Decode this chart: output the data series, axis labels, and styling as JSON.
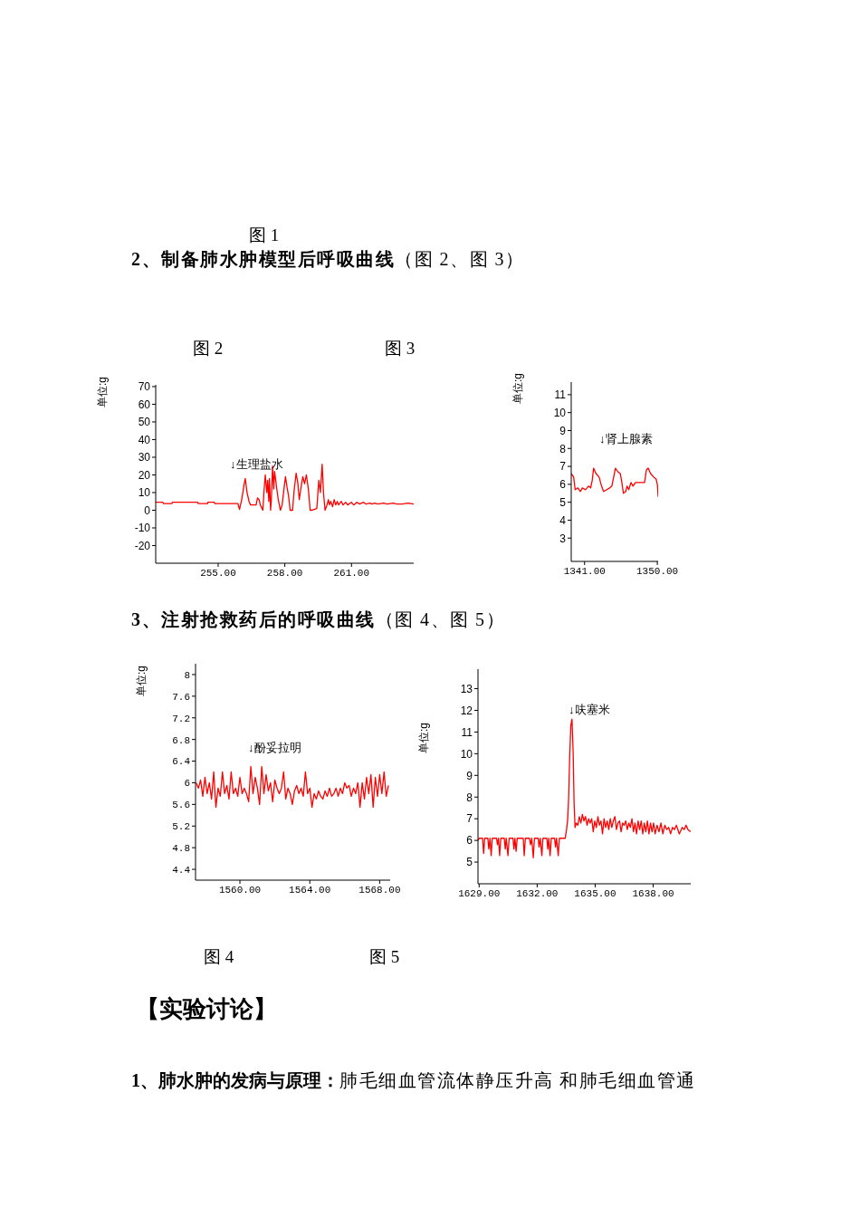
{
  "chart_data": [
    {
      "type": "line",
      "title": "2、制备肺水肿模型后呼吸曲线",
      "subtitle": "（图 2、图 3）",
      "ylabel": "单位:g",
      "annotations": [
        "图 1",
        "图 2",
        "↓生理盐水"
      ],
      "color": "#ff0000",
      "marker": "none",
      "x": [
        252.19,
        252.51,
        252.54,
        252.92,
        252.94,
        254.08,
        254.1,
        254.53,
        254.54,
        254.83,
        254.85,
        255.89,
        255.96,
        256.06,
        256.16,
        256.22,
        256.3,
        256.39,
        256.46,
        256.71,
        256.77,
        256.84,
        256.9,
        257.01,
        257.06,
        257.12,
        257.19,
        257.23,
        257.28,
        257.31,
        257.36,
        257.39,
        257.45,
        257.5,
        257.54,
        257.61,
        257.66,
        257.72,
        257.8,
        257.88,
        257.96,
        258.03,
        258.1,
        258.17,
        258.24,
        258.35,
        258.41,
        258.51,
        258.59,
        258.65,
        258.73,
        258.81,
        258.89,
        258.97,
        259.06,
        259.14,
        259.22,
        259.44,
        259.53,
        259.6,
        259.68,
        259.74,
        259.81,
        259.9,
        259.96,
        260.01,
        260.07,
        260.15,
        260.22,
        260.29,
        260.36,
        260.42,
        260.54,
        260.62,
        260.74,
        260.83,
        260.99,
        261.1,
        261.24,
        261.37,
        261.54,
        261.65,
        261.84,
        261.92,
        262.04,
        262.19,
        262.44,
        262.6,
        262.88,
        263.04,
        263.28,
        263.54,
        263.8
      ],
      "values": [
        4.5,
        4.5,
        3.8,
        3.8,
        4.5,
        4.5,
        3.8,
        3.8,
        4.5,
        4.5,
        3.8,
        3.8,
        0.5,
        6,
        14,
        18,
        10,
        5,
        3,
        3,
        7,
        6,
        3,
        0,
        10,
        20,
        10,
        17,
        5,
        18,
        0,
        5,
        25,
        12,
        22,
        15,
        10,
        5,
        0,
        3,
        12,
        19,
        13,
        8,
        0,
        0,
        10,
        21,
        15,
        6,
        13,
        19,
        15,
        20,
        12,
        0,
        0,
        1,
        17,
        10,
        26,
        10,
        0,
        3,
        6,
        3,
        5,
        2,
        6,
        3,
        5,
        3,
        5,
        3,
        4.5,
        3,
        4.5,
        3,
        4.5,
        3.5,
        4.5,
        3.5,
        4,
        3.5,
        4,
        3.5,
        4,
        3.5,
        4,
        3.5,
        3.5,
        4,
        3.5
      ],
      "xlim": [
        252.19,
        263.8
      ],
      "xticks": [
        {
          "value": 255,
          "label": "255.00"
        },
        {
          "value": 258,
          "label": "258.00"
        },
        {
          "value": 261,
          "label": "261.00"
        }
      ],
      "ylim": [
        -30,
        71
      ],
      "yticks": [
        -20,
        -10,
        0,
        10,
        20,
        30,
        40,
        50,
        60,
        70
      ]
    },
    {
      "type": "line",
      "ylabel": "单位:g",
      "annotations": [
        "图 3",
        "↓肾上腺素"
      ],
      "color": "#ff0000",
      "marker": "none",
      "x": [
        1339.35,
        1339.65,
        1339.84,
        1340.18,
        1340.48,
        1340.74,
        1341.11,
        1341.49,
        1341.75,
        1341.94,
        1342.12,
        1342.42,
        1342.8,
        1343.1,
        1343.36,
        1343.74,
        1344.11,
        1344.37,
        1344.6,
        1344.82,
        1345.12,
        1345.42,
        1345.65,
        1345.8,
        1346.1,
        1346.25,
        1346.47,
        1346.74,
        1347,
        1347.3,
        1347.86,
        1348.42,
        1348.65,
        1348.87,
        1349.17,
        1349.55,
        1349.85,
        1350,
        1350.1
      ],
      "values": [
        6.6,
        6.4,
        5.7,
        5.8,
        5.6,
        5.8,
        5.7,
        5.9,
        5.8,
        6.2,
        6.9,
        6.6,
        6.4,
        5.9,
        5.6,
        5.7,
        5.8,
        5.9,
        6.4,
        6.9,
        6.7,
        6.6,
        6.0,
        5.5,
        5.6,
        5.9,
        5.7,
        6.1,
        5.9,
        6.1,
        6.1,
        6.1,
        6.8,
        6.9,
        6.6,
        6.4,
        6.3,
        6.0,
        5.3
      ],
      "xlim": [
        1339.35,
        1350.1
      ],
      "xticks": [
        {
          "value": 1341,
          "label": "1341.00"
        },
        {
          "value": 1350,
          "label": "1350.00"
        }
      ],
      "ylim": [
        1.7,
        11.7
      ],
      "yticks": [
        3,
        4,
        5,
        6,
        7,
        8,
        9,
        10,
        11
      ]
    },
    {
      "type": "line",
      "title": "3、注射抢救药后的呼吸曲线",
      "subtitle": "（图 4、图 5）",
      "ylabel": "单位:g",
      "annotations": [
        "↓酚妥拉明",
        "图 4"
      ],
      "color": "#ff0000",
      "marker": "none",
      "x": [
        1557.5,
        1557.625,
        1557.75,
        1557.875,
        1558,
        1558.125,
        1558.25,
        1558.375,
        1558.5,
        1558.625,
        1558.75,
        1558.875,
        1559,
        1559.125,
        1559.25,
        1559.375,
        1559.5,
        1559.625,
        1559.75,
        1559.875,
        1560,
        1560.125,
        1560.25,
        1560.375,
        1560.5,
        1560.625,
        1560.75,
        1560.875,
        1561,
        1561.125,
        1561.25,
        1561.375,
        1561.5,
        1561.625,
        1561.75,
        1561.875,
        1562,
        1562.125,
        1562.25,
        1562.375,
        1562.5,
        1562.625,
        1562.75,
        1562.875,
        1563,
        1563.125,
        1563.25,
        1563.375,
        1563.5,
        1563.625,
        1563.75,
        1563.875,
        1564,
        1564.125,
        1564.25,
        1564.375,
        1564.5,
        1564.625,
        1564.75,
        1564.875,
        1565,
        1565.125,
        1565.25,
        1565.375,
        1565.5,
        1565.625,
        1565.75,
        1565.875,
        1566,
        1566.125,
        1566.25,
        1566.375,
        1566.5,
        1566.625,
        1566.75,
        1566.875,
        1567,
        1567.125,
        1567.25,
        1567.375,
        1567.5,
        1567.625,
        1567.75,
        1567.875,
        1568,
        1568.125,
        1568.25,
        1568.375,
        1568.5
      ],
      "values": [
        6.0,
        5.9,
        6.05,
        5.75,
        6.1,
        5.8,
        6.0,
        5.7,
        6.2,
        5.55,
        5.9,
        5.75,
        6.2,
        5.8,
        5.95,
        5.7,
        6.2,
        5.8,
        5.9,
        5.75,
        6.1,
        5.8,
        5.9,
        5.8,
        5.65,
        6.3,
        5.8,
        6.1,
        5.9,
        5.6,
        6.3,
        5.8,
        6.15,
        5.85,
        6.0,
        5.65,
        6.05,
        5.9,
        5.8,
        5.9,
        6.2,
        5.7,
        5.9,
        5.8,
        5.6,
        5.85,
        5.95,
        5.8,
        5.9,
        5.75,
        6.2,
        5.8,
        5.9,
        5.55,
        5.8,
        5.7,
        5.85,
        5.75,
        5.7,
        5.85,
        5.75,
        5.9,
        5.75,
        5.8,
        5.9,
        5.75,
        5.9,
        5.8,
        6.0,
        5.9,
        5.95,
        5.75,
        5.9,
        5.8,
        6.0,
        5.55,
        6.0,
        5.7,
        6.1,
        5.8,
        6.15,
        5.55,
        6.1,
        5.75,
        6.15,
        5.8,
        6.2,
        5.75,
        5.95
      ],
      "xlim": [
        1557.46,
        1568.6
      ],
      "xticks": [
        {
          "value": 1560,
          "label": "1560.00"
        },
        {
          "value": 1564,
          "label": "1564.00"
        },
        {
          "value": 1568,
          "label": "1568.00"
        }
      ],
      "ylim": [
        4.2,
        8.2
      ],
      "yticks": [
        4.4,
        4.8,
        5.2,
        5.6,
        6,
        6.4,
        6.8,
        7.2,
        7.6,
        8
      ]
    },
    {
      "type": "line",
      "ylabel": "单位:g",
      "annotations": [
        "↓呋塞米",
        "图 5",
        "【实验讨论】",
        "1、肺水肿的发病与原理：",
        "肺毛细血管流体静压升高 和肺毛细血管通"
      ],
      "color": "#ff0000",
      "marker": "none",
      "x": [
        1628.94,
        1629.0,
        1629.18,
        1629.23,
        1629.29,
        1629.45,
        1629.5,
        1629.56,
        1629.62,
        1629.68,
        1629.9,
        1629.95,
        1630.0,
        1630.06,
        1630.12,
        1630.3,
        1630.35,
        1630.4,
        1630.49,
        1630.55,
        1630.75,
        1630.8,
        1630.85,
        1630.91,
        1630.97,
        1631.28,
        1631.33,
        1631.39,
        1631.6,
        1631.66,
        1631.72,
        1631.8,
        1631.86,
        1632.05,
        1632.1,
        1632.16,
        1632.24,
        1632.3,
        1632.5,
        1632.55,
        1632.6,
        1632.67,
        1632.73,
        1632.9,
        1632.95,
        1633.0,
        1633.09,
        1633.15,
        1633.45,
        1633.52,
        1633.58,
        1633.63,
        1633.68,
        1633.74,
        1633.8,
        1633.86,
        1633.91,
        1633.96,
        1634.02,
        1634.1,
        1634.18,
        1634.26,
        1634.34,
        1634.42,
        1634.5,
        1634.58,
        1634.66,
        1634.74,
        1634.82,
        1634.9,
        1634.98,
        1635.06,
        1635.14,
        1635.22,
        1635.3,
        1635.38,
        1635.46,
        1635.54,
        1635.62,
        1635.7,
        1635.78,
        1635.86,
        1635.94,
        1636.02,
        1636.1,
        1636.18,
        1636.26,
        1636.34,
        1636.42,
        1636.5,
        1636.58,
        1636.66,
        1636.74,
        1636.82,
        1636.9,
        1636.98,
        1637.06,
        1637.14,
        1637.22,
        1637.3,
        1637.38,
        1637.46,
        1637.54,
        1637.62,
        1637.7,
        1637.78,
        1637.86,
        1637.94,
        1638.02,
        1638.1,
        1638.2,
        1638.3,
        1638.4,
        1638.5,
        1638.6,
        1638.7,
        1638.8,
        1638.9,
        1639.0,
        1639.1,
        1639.2,
        1639.35,
        1639.5,
        1639.6,
        1639.7,
        1639.8,
        1639.93
      ],
      "values": [
        6.0,
        6.1,
        6.1,
        5.4,
        6.1,
        6.1,
        5.6,
        6.1,
        5.3,
        6.1,
        6.1,
        5.8,
        6.1,
        5.3,
        6.1,
        6.1,
        5.6,
        6.1,
        5.3,
        6.1,
        6.1,
        5.6,
        6.1,
        5.5,
        6.1,
        6.1,
        5.3,
        6.1,
        6.1,
        5.8,
        6.1,
        5.2,
        6.1,
        6.1,
        5.7,
        6.1,
        5.3,
        6.1,
        6.1,
        5.6,
        6.1,
        5.3,
        6.1,
        6.1,
        5.7,
        6.1,
        5.3,
        6.1,
        6.1,
        6.5,
        7.0,
        8.0,
        9.8,
        11.3,
        11.6,
        10.1,
        7.7,
        6.6,
        6.8,
        6.7,
        7.1,
        6.8,
        7.2,
        6.9,
        7.1,
        6.7,
        7.0,
        6.8,
        7.0,
        6.4,
        6.9,
        6.6,
        7.1,
        6.7,
        6.9,
        6.3,
        7.0,
        6.6,
        6.9,
        6.5,
        7.0,
        6.6,
        6.9,
        7.1,
        6.5,
        6.8,
        6.9,
        6.4,
        6.8,
        6.7,
        6.9,
        6.5,
        6.8,
        6.6,
        7.0,
        6.4,
        6.8,
        6.3,
        6.9,
        6.5,
        6.9,
        6.3,
        6.8,
        6.4,
        6.9,
        6.3,
        6.8,
        6.4,
        6.8,
        6.3,
        6.7,
        6.4,
        6.8,
        6.3,
        6.7,
        6.5,
        6.6,
        6.3,
        6.6,
        6.5,
        6.7,
        6.3,
        6.6,
        6.5,
        6.7,
        6.5,
        6.4
      ],
      "xlim": [
        1628.94,
        1639.94
      ],
      "xticks": [
        {
          "value": 1629,
          "label": "1629.00"
        },
        {
          "value": 1632,
          "label": "1632.00"
        },
        {
          "value": 1635,
          "label": "1635.00"
        },
        {
          "value": 1638,
          "label": "1638.00"
        }
      ],
      "ylim": [
        4,
        13.9
      ],
      "yticks": [
        5,
        6,
        7,
        8,
        9,
        10,
        11,
        12,
        13
      ]
    }
  ]
}
